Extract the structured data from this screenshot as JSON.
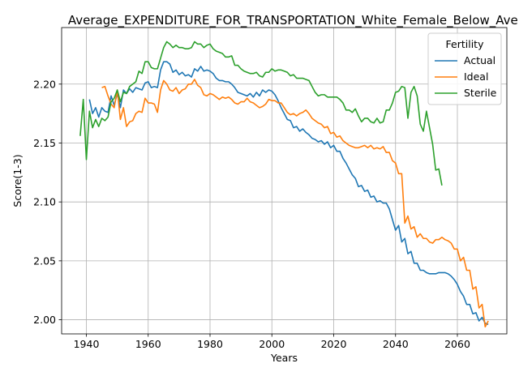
{
  "chart_data": {
    "type": "line",
    "title": "Average_EXPENDITURE_FOR_TRANSPORTATION_White_Female_Below_Avera",
    "xlabel": "Years",
    "ylabel": "Score(1-3)",
    "xlim": [
      1932,
      2076
    ],
    "ylim": [
      1.988,
      2.248
    ],
    "xticks": [
      1940,
      1960,
      1980,
      2000,
      2020,
      2040,
      2060
    ],
    "yticks": [
      2.0,
      2.05,
      2.1,
      2.15,
      2.2
    ],
    "xtick_labels": [
      "1940",
      "1960",
      "1980",
      "2000",
      "2020",
      "2040",
      "2060"
    ],
    "ytick_labels": [
      "2.00",
      "2.05",
      "2.10",
      "2.15",
      "2.20"
    ],
    "grid": true,
    "legend": {
      "title": "Fertility",
      "placement": "top-right"
    },
    "series": [
      {
        "name": "Actual",
        "color": "#1f77b4",
        "x": [
          1941,
          1942,
          1943,
          1944,
          1945,
          1946,
          1947,
          1948,
          1949,
          1950,
          1951,
          1952,
          1953,
          1954,
          1955,
          1956,
          1957,
          1958,
          1959,
          1960,
          1961,
          1962,
          1963,
          1964,
          1965,
          1966,
          1967,
          1968,
          1969,
          1970,
          1971,
          1972,
          1973,
          1974,
          1975,
          1976,
          1977,
          1978,
          1979,
          1980,
          1981,
          1982,
          1983,
          1984,
          1985,
          1986,
          1987,
          1988,
          1989,
          1990,
          1991,
          1992,
          1993,
          1994,
          1995,
          1996,
          1997,
          1998,
          1999,
          2000,
          2001,
          2002,
          2003,
          2004,
          2005,
          2006,
          2007,
          2008,
          2009,
          2010,
          2011,
          2012,
          2013,
          2014,
          2015,
          2016,
          2017,
          2018,
          2019,
          2020,
          2021,
          2022,
          2023,
          2024,
          2025,
          2026,
          2027,
          2028,
          2029,
          2030,
          2031,
          2032,
          2033,
          2034,
          2035,
          2036,
          2037,
          2038,
          2039,
          2040,
          2041,
          2042,
          2043,
          2044,
          2045,
          2046,
          2047,
          2048,
          2049,
          2050,
          2051,
          2052,
          2053,
          2054,
          2055,
          2056,
          2057,
          2058,
          2059,
          2060,
          2061,
          2062,
          2063,
          2064,
          2065,
          2066,
          2067,
          2068,
          2069,
          2070
        ],
        "y": [
          2.187,
          2.175,
          2.18,
          2.172,
          2.18,
          2.177,
          2.176,
          2.19,
          2.182,
          2.192,
          2.18,
          2.195,
          2.192,
          2.196,
          2.193,
          2.197,
          2.196,
          2.195,
          2.201,
          2.202,
          2.197,
          2.198,
          2.197,
          2.212,
          2.219,
          2.219,
          2.217,
          2.21,
          2.212,
          2.208,
          2.21,
          2.207,
          2.208,
          2.206,
          2.213,
          2.211,
          2.215,
          2.211,
          2.212,
          2.211,
          2.209,
          2.205,
          2.203,
          2.203,
          2.202,
          2.202,
          2.2,
          2.197,
          2.193,
          2.192,
          2.191,
          2.19,
          2.192,
          2.189,
          2.193,
          2.19,
          2.195,
          2.193,
          2.195,
          2.194,
          2.191,
          2.186,
          2.18,
          2.175,
          2.17,
          2.169,
          2.163,
          2.164,
          2.16,
          2.162,
          2.159,
          2.157,
          2.154,
          2.153,
          2.151,
          2.152,
          2.149,
          2.151,
          2.146,
          2.148,
          2.143,
          2.143,
          2.137,
          2.133,
          2.128,
          2.123,
          2.12,
          2.113,
          2.114,
          2.109,
          2.11,
          2.104,
          2.105,
          2.1,
          2.101,
          2.099,
          2.099,
          2.094,
          2.085,
          2.076,
          2.08,
          2.066,
          2.069,
          2.056,
          2.058,
          2.048,
          2.048,
          2.042,
          2.042,
          2.04,
          2.039,
          2.039,
          2.039,
          2.04,
          2.04,
          2.04,
          2.039,
          2.037,
          2.034,
          2.03,
          2.024,
          2.02,
          2.013,
          2.013,
          2.005,
          2.006,
          1.999,
          2.002,
          1.997,
          1.996
        ]
      },
      {
        "name": "Ideal",
        "color": "#ff7f0e",
        "x": [
          1945,
          1946,
          1947,
          1948,
          1949,
          1950,
          1951,
          1952,
          1953,
          1954,
          1955,
          1956,
          1957,
          1958,
          1959,
          1960,
          1961,
          1962,
          1963,
          1964,
          1965,
          1966,
          1967,
          1968,
          1969,
          1970,
          1971,
          1972,
          1973,
          1974,
          1975,
          1976,
          1977,
          1978,
          1979,
          1980,
          1981,
          1982,
          1983,
          1984,
          1985,
          1986,
          1987,
          1988,
          1989,
          1990,
          1991,
          1992,
          1993,
          1994,
          1995,
          1996,
          1997,
          1998,
          1999,
          2000,
          2001,
          2002,
          2003,
          2004,
          2005,
          2006,
          2007,
          2008,
          2009,
          2010,
          2011,
          2012,
          2013,
          2014,
          2015,
          2016,
          2017,
          2018,
          2019,
          2020,
          2021,
          2022,
          2023,
          2024,
          2025,
          2026,
          2027,
          2028,
          2029,
          2030,
          2031,
          2032,
          2033,
          2034,
          2035,
          2036,
          2037,
          2038,
          2039,
          2040,
          2041,
          2042,
          2043,
          2044,
          2045,
          2046,
          2047,
          2048,
          2049,
          2050,
          2051,
          2052,
          2053,
          2054,
          2055,
          2056,
          2057,
          2058,
          2059,
          2060,
          2061,
          2062,
          2063,
          2064,
          2065,
          2066,
          2067,
          2068,
          2069,
          2070
        ],
        "y": [
          2.197,
          2.198,
          2.19,
          2.183,
          2.18,
          2.195,
          2.17,
          2.18,
          2.164,
          2.168,
          2.169,
          2.175,
          2.177,
          2.176,
          2.188,
          2.184,
          2.184,
          2.183,
          2.176,
          2.195,
          2.203,
          2.2,
          2.195,
          2.194,
          2.197,
          2.192,
          2.195,
          2.196,
          2.2,
          2.2,
          2.204,
          2.199,
          2.197,
          2.191,
          2.19,
          2.192,
          2.191,
          2.189,
          2.187,
          2.189,
          2.188,
          2.189,
          2.187,
          2.184,
          2.183,
          2.185,
          2.185,
          2.188,
          2.185,
          2.184,
          2.182,
          2.18,
          2.181,
          2.183,
          2.187,
          2.186,
          2.186,
          2.184,
          2.184,
          2.18,
          2.176,
          2.174,
          2.175,
          2.173,
          2.175,
          2.176,
          2.178,
          2.175,
          2.171,
          2.169,
          2.167,
          2.166,
          2.163,
          2.164,
          2.158,
          2.159,
          2.155,
          2.156,
          2.152,
          2.15,
          2.148,
          2.147,
          2.146,
          2.146,
          2.147,
          2.148,
          2.146,
          2.148,
          2.145,
          2.146,
          2.145,
          2.147,
          2.142,
          2.142,
          2.135,
          2.133,
          2.124,
          2.124,
          2.082,
          2.088,
          2.077,
          2.079,
          2.07,
          2.073,
          2.069,
          2.069,
          2.066,
          2.065,
          2.068,
          2.068,
          2.07,
          2.068,
          2.067,
          2.065,
          2.06,
          2.06,
          2.05,
          2.053,
          2.042,
          2.042,
          2.026,
          2.028,
          2.01,
          2.013,
          1.994,
          1.999
        ]
      },
      {
        "name": "Sterile",
        "color": "#2ca02c",
        "x": [
          1938,
          1939,
          1940,
          1941,
          1942,
          1943,
          1944,
          1945,
          1946,
          1947,
          1948,
          1949,
          1950,
          1951,
          1952,
          1953,
          1954,
          1955,
          1956,
          1957,
          1958,
          1959,
          1960,
          1961,
          1962,
          1963,
          1964,
          1965,
          1966,
          1967,
          1968,
          1969,
          1970,
          1971,
          1972,
          1973,
          1974,
          1975,
          1976,
          1977,
          1978,
          1979,
          1980,
          1981,
          1982,
          1983,
          1984,
          1985,
          1986,
          1987,
          1988,
          1989,
          1990,
          1991,
          1992,
          1993,
          1994,
          1995,
          1996,
          1997,
          1998,
          1999,
          2000,
          2001,
          2002,
          2003,
          2004,
          2005,
          2006,
          2007,
          2008,
          2009,
          2010,
          2011,
          2012,
          2013,
          2014,
          2015,
          2016,
          2017,
          2018,
          2019,
          2020,
          2021,
          2022,
          2023,
          2024,
          2025,
          2026,
          2027,
          2028,
          2029,
          2030,
          2031,
          2032,
          2033,
          2034,
          2035,
          2036,
          2037,
          2038,
          2039,
          2040,
          2041,
          2042,
          2043,
          2044,
          2045,
          2046,
          2047,
          2048,
          2049,
          2050,
          2051,
          2052,
          2053,
          2054,
          2055
        ],
        "y": [
          2.156,
          2.187,
          2.136,
          2.177,
          2.163,
          2.17,
          2.164,
          2.171,
          2.169,
          2.172,
          2.185,
          2.188,
          2.195,
          2.185,
          2.193,
          2.192,
          2.198,
          2.2,
          2.202,
          2.211,
          2.209,
          2.219,
          2.219,
          2.214,
          2.213,
          2.213,
          2.222,
          2.231,
          2.236,
          2.234,
          2.231,
          2.233,
          2.231,
          2.231,
          2.23,
          2.23,
          2.231,
          2.236,
          2.234,
          2.234,
          2.231,
          2.233,
          2.234,
          2.23,
          2.228,
          2.227,
          2.226,
          2.223,
          2.223,
          2.224,
          2.216,
          2.216,
          2.213,
          2.211,
          2.21,
          2.209,
          2.209,
          2.21,
          2.207,
          2.206,
          2.21,
          2.21,
          2.213,
          2.211,
          2.212,
          2.212,
          2.211,
          2.21,
          2.207,
          2.208,
          2.205,
          2.205,
          2.205,
          2.204,
          2.203,
          2.198,
          2.193,
          2.19,
          2.191,
          2.191,
          2.189,
          2.189,
          2.189,
          2.189,
          2.187,
          2.184,
          2.178,
          2.178,
          2.176,
          2.179,
          2.173,
          2.168,
          2.171,
          2.171,
          2.168,
          2.167,
          2.171,
          2.167,
          2.168,
          2.178,
          2.178,
          2.184,
          2.193,
          2.194,
          2.198,
          2.197,
          2.171,
          2.193,
          2.198,
          2.19,
          2.166,
          2.16,
          2.177,
          2.163,
          2.149,
          2.127,
          2.128,
          2.114
        ]
      }
    ]
  }
}
